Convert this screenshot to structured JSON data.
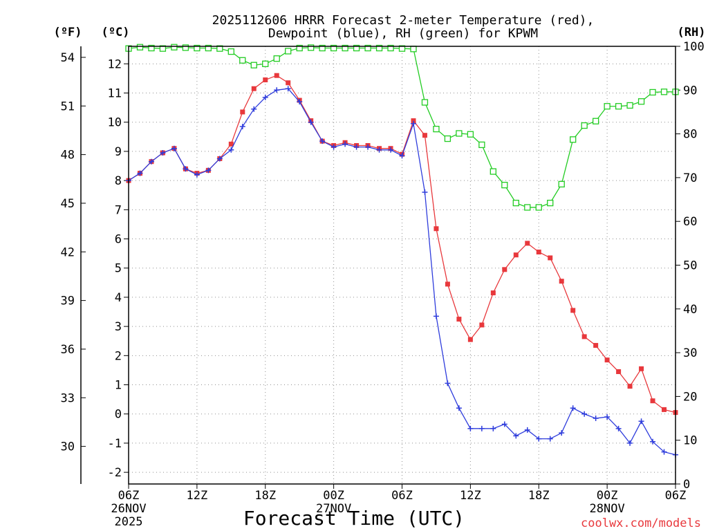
{
  "chart_data": {
    "type": "line",
    "title_line1": "2025112606 HRRR Forecast 2-meter Temperature (red),",
    "title_line2": "Dewpoint (blue), RH (green) for KPWM",
    "xlabel": "Forecast Time (UTC)",
    "credit": "coolwx.com/models",
    "unit_f": "(ºF)",
    "unit_c": "(ºC)",
    "unit_rh": "(RH)",
    "x_range": [
      0,
      48
    ],
    "y_celsius_range": [
      -2.4,
      12.6
    ],
    "rh_range": [
      0,
      100
    ],
    "x_ticks": [
      {
        "hour": 0,
        "label": "06Z"
      },
      {
        "hour": 6,
        "label": "12Z"
      },
      {
        "hour": 12,
        "label": "18Z"
      },
      {
        "hour": 18,
        "label": "00Z"
      },
      {
        "hour": 24,
        "label": "06Z"
      },
      {
        "hour": 30,
        "label": "12Z"
      },
      {
        "hour": 36,
        "label": "18Z"
      },
      {
        "hour": 42,
        "label": "00Z"
      },
      {
        "hour": 48,
        "label": "06Z"
      }
    ],
    "date_labels": [
      {
        "hour": 0,
        "lines": [
          "26NOV",
          "2025"
        ]
      },
      {
        "hour": 18,
        "lines": [
          "27NOV"
        ]
      },
      {
        "hour": 42,
        "lines": [
          "28NOV"
        ]
      }
    ],
    "y_celsius_ticks": [
      -2,
      -1,
      0,
      1,
      2,
      3,
      4,
      5,
      6,
      7,
      8,
      9,
      10,
      11,
      12
    ],
    "y_fahrenheit_ticks": [
      30,
      33,
      36,
      39,
      42,
      45,
      48,
      51,
      54
    ],
    "rh_ticks": [
      0,
      10,
      20,
      30,
      40,
      50,
      60,
      70,
      80,
      90,
      100
    ],
    "series": [
      {
        "name": "Temperature (red)",
        "color": "#e8383c",
        "marker": "filled-square",
        "hours": [
          0,
          1,
          2,
          3,
          4,
          5,
          6,
          7,
          8,
          9,
          10,
          11,
          12,
          13,
          14,
          15,
          16,
          17,
          18,
          19,
          20,
          21,
          22,
          23,
          24,
          25,
          26,
          27,
          28,
          29,
          30,
          31,
          32,
          33,
          34,
          35,
          36,
          37,
          38,
          39,
          40,
          41,
          42,
          43,
          44,
          45,
          46,
          47,
          48
        ],
        "values": [
          8.0,
          8.25,
          8.65,
          8.95,
          9.1,
          8.4,
          8.25,
          8.35,
          8.75,
          9.25,
          10.35,
          11.15,
          11.45,
          11.6,
          11.35,
          10.75,
          10.05,
          9.35,
          9.2,
          9.3,
          9.2,
          9.2,
          9.1,
          9.1,
          8.9,
          10.05,
          9.55,
          6.35,
          4.45,
          3.25,
          2.55,
          3.05,
          4.15,
          4.95,
          5.45,
          5.85,
          5.55,
          5.35,
          4.55,
          3.55,
          2.65,
          2.35,
          1.85,
          1.45,
          0.95,
          1.55,
          0.45,
          0.15,
          0.05
        ]
      },
      {
        "name": "Dewpoint (blue)",
        "color": "#2e3cdc",
        "marker": "plus",
        "hours": [
          0,
          1,
          2,
          3,
          4,
          5,
          6,
          7,
          8,
          9,
          10,
          11,
          12,
          13,
          14,
          15,
          16,
          17,
          18,
          19,
          20,
          21,
          22,
          23,
          24,
          25,
          26,
          27,
          28,
          29,
          30,
          31,
          32,
          33,
          34,
          35,
          36,
          37,
          38,
          39,
          40,
          41,
          42,
          43,
          44,
          45,
          46,
          47,
          48
        ],
        "values": [
          8.0,
          8.25,
          8.65,
          8.95,
          9.1,
          8.4,
          8.2,
          8.35,
          8.75,
          9.05,
          9.85,
          10.45,
          10.85,
          11.1,
          11.15,
          10.7,
          10.0,
          9.35,
          9.15,
          9.25,
          9.15,
          9.15,
          9.05,
          9.05,
          8.85,
          9.95,
          7.6,
          3.35,
          1.05,
          0.2,
          -0.5,
          -0.5,
          -0.5,
          -0.35,
          -0.75,
          -0.55,
          -0.85,
          -0.85,
          -0.65,
          0.2,
          0.0,
          -0.15,
          -0.1,
          -0.5,
          -1.0,
          -0.25,
          -0.95,
          -1.3,
          -1.4
        ]
      },
      {
        "name": "RH (green)",
        "color": "#22cc22",
        "marker": "open-square",
        "hours": [
          0,
          1,
          2,
          3,
          4,
          5,
          6,
          7,
          8,
          9,
          10,
          11,
          12,
          13,
          14,
          15,
          16,
          17,
          18,
          19,
          20,
          21,
          22,
          23,
          24,
          25,
          26,
          27,
          28,
          29,
          30,
          31,
          32,
          33,
          34,
          35,
          36,
          37,
          38,
          39,
          40,
          41,
          42,
          43,
          44,
          45,
          46,
          47,
          48
        ],
        "values": [
          99.5,
          99.8,
          99.6,
          99.5,
          99.8,
          99.7,
          99.6,
          99.6,
          99.5,
          98.8,
          96.8,
          95.7,
          96.0,
          97.2,
          98.9,
          99.6,
          99.7,
          99.6,
          99.6,
          99.6,
          99.6,
          99.6,
          99.6,
          99.6,
          99.5,
          99.4,
          87.2,
          81.1,
          78.9,
          80.1,
          79.9,
          77.5,
          71.4,
          68.3,
          64.2,
          63.2,
          63.2,
          64.2,
          68.5,
          78.7,
          81.9,
          82.9,
          86.3,
          86.3,
          86.5,
          87.4,
          89.5,
          89.6,
          89.6
        ]
      }
    ]
  }
}
